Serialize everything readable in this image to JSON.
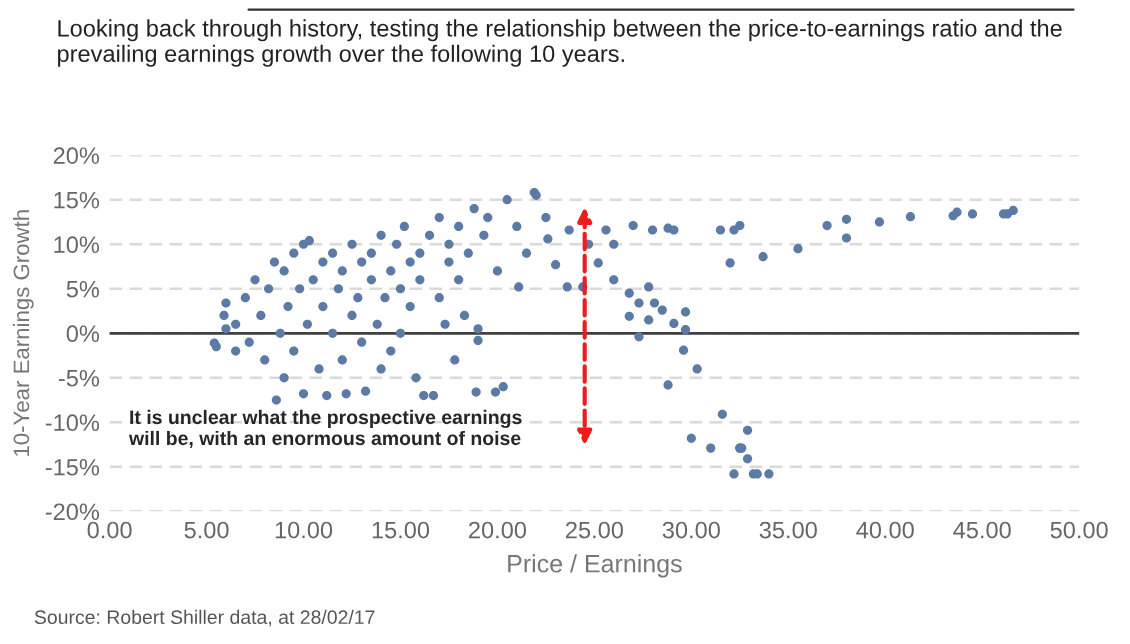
{
  "chart_data": {
    "type": "scatter",
    "title": "Looking back through history, testing the relationship between the price-to-earnings ratio and the prevailing earnings growth over the following 10 years.",
    "xlabel": "Price / Earnings",
    "ylabel": "10-Year Earnings Growth",
    "annotations": [
      "It is unclear what the prospective earnings\nwill be, with an enormous amount of noise",
      "Source: Robert Shiller data, at 28/02/17"
    ],
    "xlim": [
      0,
      50
    ],
    "ylim": [
      -20,
      20
    ],
    "xticks": [
      {
        "value": 0,
        "label": "0.00"
      },
      {
        "value": 5,
        "label": "5.00"
      },
      {
        "value": 10,
        "label": "10.00"
      },
      {
        "value": 15,
        "label": "15.00"
      },
      {
        "value": 20,
        "label": "20.00"
      },
      {
        "value": 25,
        "label": "25.00"
      },
      {
        "value": 30,
        "label": "30.00"
      },
      {
        "value": 35,
        "label": "35.00"
      },
      {
        "value": 40,
        "label": "40.00"
      },
      {
        "value": 45,
        "label": "45.00"
      },
      {
        "value": 50,
        "label": "50.00"
      }
    ],
    "yticks": [
      {
        "value": -20,
        "label": "-20%"
      },
      {
        "value": -15,
        "label": "-15%"
      },
      {
        "value": -10,
        "label": "-10%"
      },
      {
        "value": -5,
        "label": "-5%"
      },
      {
        "value": 0,
        "label": "0%"
      },
      {
        "value": 5,
        "label": "5%"
      },
      {
        "value": 10,
        "label": "10%"
      },
      {
        "value": 15,
        "label": "15%"
      },
      {
        "value": 20,
        "label": "20%"
      }
    ],
    "grid": "y",
    "marker": "circle",
    "ref_lines": [
      {
        "axis": "y",
        "value": 0,
        "color": "#404040",
        "line_style": "solid"
      }
    ],
    "series": [
      {
        "color": "#5b7ba6",
        "x": [
          5.4,
          5.5,
          6,
          6.5,
          6,
          5.9,
          6.5,
          7,
          7.2,
          7.5,
          7.8,
          8,
          8.2,
          8.5,
          8.6,
          8.8,
          9,
          9,
          9.2,
          9.5,
          9.5,
          9.8,
          10,
          10,
          10.3,
          10.2,
          10.5,
          10.8,
          11,
          11,
          11.2,
          11.5,
          11.5,
          11.8,
          12,
          12,
          12.2,
          12.5,
          12.5,
          12.8,
          13,
          13,
          13.2,
          13.5,
          13.5,
          13.8,
          14,
          14,
          14.2,
          14.5,
          14.5,
          14.8,
          15,
          15,
          15.2,
          15.5,
          15.5,
          15.8,
          16,
          16,
          16.2,
          16.5,
          16.7,
          17,
          17,
          17.3,
          17.5,
          17.5,
          17.8,
          18,
          18,
          18.3,
          18.5,
          18.8,
          18.9,
          19,
          19,
          19.3,
          19.5,
          19.9,
          20,
          20.3,
          20.5,
          21,
          21.1,
          21.5,
          21.9,
          22,
          22.5,
          22.6,
          23,
          23.6,
          23.7,
          24.4,
          24.7,
          25.2,
          25.6,
          26,
          26,
          26.8,
          26.8,
          27,
          27.3,
          27.3,
          27.8,
          27.8,
          28,
          28.1,
          28.5,
          28.8,
          28.8,
          29.1,
          29.1,
          29.6,
          29.7,
          29.7,
          30,
          30.3,
          31,
          31.5,
          31.6,
          32,
          32.2,
          32.2,
          32.5,
          32.5,
          32.5,
          32.6,
          32.9,
          32.9,
          33.2,
          33.4,
          33.7,
          34,
          35.5,
          37,
          38,
          38,
          39.7,
          41.3,
          43.5,
          43.7,
          44.5,
          46.1,
          46.3,
          46.6
        ],
        "values": [
          -1.1,
          -1.5,
          0.5,
          -2,
          3.4,
          2,
          1,
          4,
          -1,
          6,
          2,
          -3,
          5,
          8,
          -7.5,
          0,
          7,
          -5,
          3,
          9,
          -2,
          5,
          10,
          -6.8,
          10.4,
          1,
          6,
          -4,
          8,
          3,
          -7,
          9,
          0,
          5,
          7,
          -3,
          -6.8,
          10,
          2,
          4,
          8,
          -1,
          -6.5,
          6,
          9,
          1,
          11,
          -4,
          4,
          7,
          -2,
          10,
          5,
          0,
          12,
          3,
          8,
          -5,
          9,
          6,
          -7,
          11,
          -7,
          4,
          13,
          1,
          8,
          10,
          -3,
          12,
          6,
          2,
          9,
          14,
          -6.6,
          0.5,
          -0.8,
          11,
          13,
          -6.6,
          7,
          -6,
          15,
          12,
          5.2,
          9,
          15.8,
          15.5,
          13,
          10.6,
          7.7,
          5.2,
          11.6,
          5.2,
          10,
          7.9,
          11.6,
          10,
          6,
          4.5,
          1.9,
          12.1,
          3.4,
          -0.4,
          5.2,
          1.5,
          11.6,
          3.4,
          2.6,
          11.8,
          -5.8,
          1.1,
          11.6,
          -1.9,
          2.4,
          0.4,
          -11.8,
          -4,
          -12.9,
          11.6,
          -9.1,
          7.9,
          11.6,
          -15.8,
          12.1,
          -12.9,
          -12.9,
          -12.9,
          -10.9,
          -14.1,
          -15.8,
          -15.8,
          8.6,
          -15.8,
          9.5,
          12.1,
          12.8,
          10.7,
          12.5,
          13.1,
          13.2,
          13.6,
          13.4,
          13.4,
          13.4,
          13.8
        ]
      }
    ]
  }
}
